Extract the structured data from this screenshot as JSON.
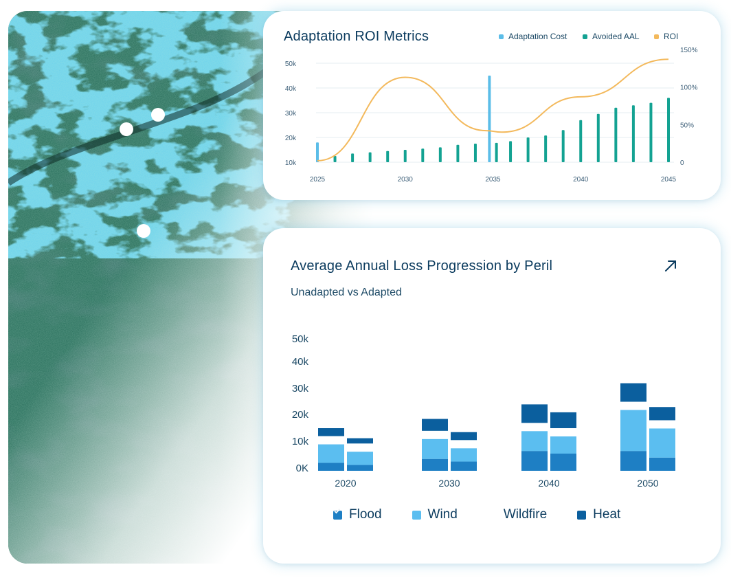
{
  "colors": {
    "cost": "#5bbde8",
    "avoided": "#13a292",
    "roi": "#f3b95c",
    "flood": "#1e7fc4",
    "wind": "#5bbef0",
    "heat": "#0b5f9e",
    "title": "#0b3b5e",
    "axis": "#3d5f78"
  },
  "roi_card": {
    "title": "Adaptation ROI Metrics",
    "legend": [
      {
        "label": "Adaptation Cost",
        "color_key": "cost"
      },
      {
        "label": "Avoided AAL",
        "color_key": "avoided"
      },
      {
        "label": "ROI",
        "color_key": "roi"
      }
    ]
  },
  "aal_card": {
    "title": "Average Annual Loss Progression by Peril",
    "subtitle": "Unadapted vs Adapted",
    "expand_icon": "arrow-up-right-icon",
    "legend": [
      {
        "label": "Flood",
        "checked": true,
        "style": "box",
        "color_key": "flood"
      },
      {
        "label": "Wind",
        "checked": true,
        "style": "box",
        "color_key": "wind"
      },
      {
        "label": "Wildfire",
        "checked": true,
        "style": "tick",
        "color_key": "heat"
      },
      {
        "label": "Heat",
        "checked": true,
        "style": "box",
        "color_key": "heat"
      }
    ]
  },
  "chart_data": [
    {
      "type": "bar",
      "title": "Adaptation ROI Metrics",
      "x": [
        2025,
        2026,
        2027,
        2028,
        2029,
        2030,
        2031,
        2032,
        2033,
        2034,
        2035,
        2036,
        2037,
        2038,
        2039,
        2040,
        2041,
        2042,
        2043,
        2044,
        2045
      ],
      "xticks": [
        2025,
        2030,
        2035,
        2040,
        2045
      ],
      "ylim": [
        10000,
        50000
      ],
      "yticks": [
        "10k",
        "20k",
        "30k",
        "40k",
        "50k"
      ],
      "y2lim": [
        0,
        150
      ],
      "y2ticks": [
        "0",
        "50%",
        "100%",
        "150%"
      ],
      "series": [
        {
          "name": "Adaptation Cost",
          "type": "bar",
          "color_key": "cost",
          "points": [
            [
              2025,
              18000
            ],
            [
              2034.8,
              45000
            ]
          ]
        },
        {
          "name": "Avoided AAL",
          "type": "bar",
          "color_key": "avoided",
          "points": [
            [
              2026,
              12500
            ],
            [
              2027,
              13500
            ],
            [
              2028,
              14000
            ],
            [
              2029,
              14500
            ],
            [
              2030,
              15000
            ],
            [
              2031,
              15500
            ],
            [
              2032,
              16000
            ],
            [
              2033,
              17000
            ],
            [
              2034,
              17500
            ],
            [
              2035.2,
              17800
            ],
            [
              2036,
              18500
            ],
            [
              2037,
              20000
            ],
            [
              2038,
              20800
            ],
            [
              2039,
              23000
            ],
            [
              2040,
              27000
            ],
            [
              2041,
              29500
            ],
            [
              2042,
              32000
            ],
            [
              2043,
              33000
            ],
            [
              2044,
              34000
            ],
            [
              2045,
              36000
            ]
          ]
        },
        {
          "name": "ROI",
          "type": "line",
          "color_key": "roi",
          "axis": "right",
          "points": [
            [
              2025,
              2
            ],
            [
              2030,
              113
            ],
            [
              2034.6,
              42
            ],
            [
              2035.5,
              40
            ],
            [
              2040,
              87
            ],
            [
              2045,
              137
            ]
          ]
        }
      ]
    },
    {
      "type": "bar",
      "title": "Average Annual Loss Progression by Peril",
      "subtitle": "Unadapted vs Adapted",
      "categories": [
        "2020",
        "2030",
        "2040",
        "2050"
      ],
      "yticks": [
        "0K",
        "10k",
        "20k",
        "30k",
        "40k",
        "50k"
      ],
      "groups": [
        {
          "category": "2020",
          "unadapted": {
            "flood": 3000,
            "wind": 7000,
            "heat": 3000
          },
          "adapted": {
            "flood": 2200,
            "wind": 5000,
            "heat": 2000
          }
        },
        {
          "category": "2030",
          "unadapted": {
            "flood": 4500,
            "wind": 7500,
            "heat": 4500
          },
          "adapted": {
            "flood": 3500,
            "wind": 5000,
            "heat": 3000
          }
        },
        {
          "category": "2040",
          "unadapted": {
            "flood": 7500,
            "wind": 7500,
            "heat": 7000
          },
          "adapted": {
            "flood": 6500,
            "wind": 6500,
            "heat": 6000
          }
        },
        {
          "category": "2050",
          "unadapted": {
            "flood": 7500,
            "wind": 15500,
            "heat": 7000
          },
          "adapted": {
            "flood": 5000,
            "wind": 11000,
            "heat": 5000
          }
        }
      ]
    }
  ]
}
